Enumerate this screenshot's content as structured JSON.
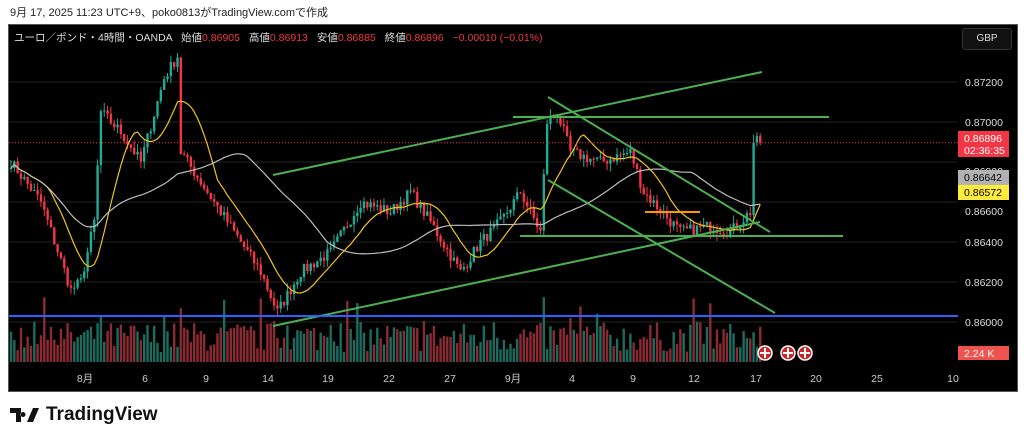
{
  "caption": "9月 17, 2025 11:23 UTC+9、poko0813がTradingView.comで作成",
  "legend": {
    "symbol": "ユーロ／ポンド・4時間・OANDA",
    "open_label": "始値",
    "open": "0.86905",
    "high_label": "高値",
    "high": "0.86913",
    "low_label": "安値",
    "low": "0.86885",
    "close_label": "終値",
    "close": "0.86896",
    "change": "−0.00010 (−0.01%)"
  },
  "currency_button": "GBP",
  "price_badges": {
    "last_price": "0.86896",
    "countdown": "02:36:35",
    "slow_ma": "0.86642",
    "fast_ma": "0.86572",
    "volume": "2.24 K"
  },
  "brand": "TradingView",
  "colors": {
    "up": "#22ab94",
    "down": "#f23645",
    "fast_ma": "#f0c419",
    "slow_ma": "#bdbdbd",
    "trendline": "#4caf50",
    "support": "#2962ff",
    "bg": "#000000"
  },
  "chart_data": {
    "type": "candlestick",
    "title": "EUR/GBP 4H OANDA",
    "y_ticks": [
      "0.87200",
      "0.87000",
      "0.86800",
      "0.86600",
      "0.86400",
      "0.86200",
      "0.86000"
    ],
    "ylim": [
      0.8592,
      0.8746
    ],
    "x_ticks": [
      "8月",
      "6",
      "9",
      "14",
      "19",
      "22",
      "27",
      "9月",
      "4",
      "9",
      "12",
      "17",
      "20",
      "25",
      "10"
    ],
    "price_path_bar_price": [
      [
        0,
        0.868
      ],
      [
        9,
        0.866
      ],
      [
        18,
        0.8616
      ],
      [
        21,
        0.862
      ],
      [
        25,
        0.865
      ],
      [
        27,
        0.8705
      ],
      [
        33,
        0.8695
      ],
      [
        39,
        0.868
      ],
      [
        46,
        0.8722
      ],
      [
        50,
        0.8733
      ],
      [
        51,
        0.8685
      ],
      [
        57,
        0.867
      ],
      [
        69,
        0.864
      ],
      [
        75,
        0.8625
      ],
      [
        80,
        0.8605
      ],
      [
        87,
        0.8625
      ],
      [
        96,
        0.8635
      ],
      [
        105,
        0.866
      ],
      [
        114,
        0.8655
      ],
      [
        120,
        0.8665
      ],
      [
        126,
        0.865
      ],
      [
        135,
        0.8625
      ],
      [
        141,
        0.864
      ],
      [
        147,
        0.865
      ],
      [
        153,
        0.8665
      ],
      [
        159,
        0.8645
      ],
      [
        161,
        0.87
      ],
      [
        164,
        0.8705
      ],
      [
        168,
        0.8685
      ],
      [
        177,
        0.868
      ],
      [
        186,
        0.8685
      ],
      [
        190,
        0.8665
      ],
      [
        201,
        0.8645
      ],
      [
        210,
        0.8648
      ],
      [
        216,
        0.8645
      ],
      [
        222,
        0.8655
      ],
      [
        223,
        0.869
      ],
      [
        225,
        0.869
      ]
    ],
    "moving_averages": [
      {
        "name": "fast",
        "period": 12,
        "last": 0.86572
      },
      {
        "name": "slow",
        "period": 45,
        "last": 0.86642
      }
    ],
    "horizontal_levels": [
      0.8603,
      0.8704,
      0.8643
    ],
    "volume_last": "2.24K"
  }
}
